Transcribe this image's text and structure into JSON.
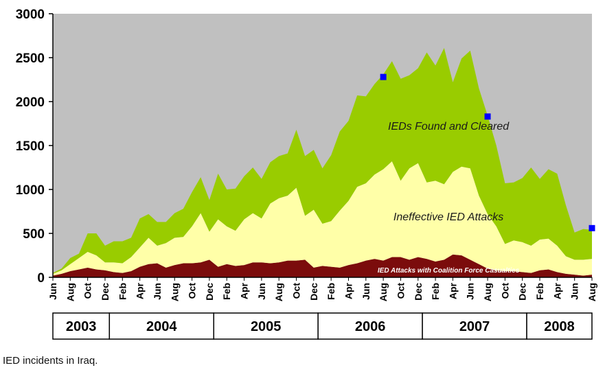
{
  "chart_data": {
    "type": "area",
    "stacked": true,
    "ylim": [
      0,
      3000
    ],
    "y_ticks": [
      0,
      500,
      1000,
      1500,
      2000,
      2500,
      3000
    ],
    "x": [
      "Jun 2003",
      "Jul",
      "Aug",
      "Sep",
      "Oct",
      "Nov",
      "Dec",
      "Jan 2004",
      "Feb",
      "Mar",
      "Apr",
      "May",
      "Jun",
      "Jul",
      "Aug",
      "Sep",
      "Oct",
      "Nov",
      "Dec",
      "Jan 2005",
      "Feb",
      "Mar",
      "Apr",
      "May",
      "Jun",
      "Jul",
      "Aug",
      "Sep",
      "Oct",
      "Nov",
      "Dec",
      "Jan 2006",
      "Feb",
      "Mar",
      "Apr",
      "May",
      "Jun",
      "Jul",
      "Aug",
      "Sep",
      "Oct",
      "Nov",
      "Dec",
      "Jan 2007",
      "Feb",
      "Mar",
      "Apr",
      "May",
      "Jun",
      "Jul",
      "Aug",
      "Sep",
      "Oct",
      "Nov",
      "Dec",
      "Jan 2008",
      "Feb",
      "Mar",
      "Apr",
      "May",
      "Jun",
      "Jul",
      "Aug"
    ],
    "x_tick_labels": [
      "Jun",
      "Aug",
      "Oct",
      "Dec",
      "Feb",
      "Apr",
      "Jun",
      "Aug",
      "Oct",
      "Dec",
      "Feb",
      "Apr",
      "Jun",
      "Aug",
      "Oct",
      "Dec",
      "Feb",
      "Apr",
      "Jun",
      "Aug",
      "Oct",
      "Dec",
      "Feb",
      "Apr",
      "Jun",
      "Aug",
      "Oct",
      "Dec",
      "Feb",
      "Apr",
      "Jun",
      "Aug"
    ],
    "years": [
      {
        "label": "2003",
        "from": 0,
        "to": 7
      },
      {
        "label": "2004",
        "from": 7,
        "to": 19
      },
      {
        "label": "2005",
        "from": 19,
        "to": 31
      },
      {
        "label": "2006",
        "from": 31,
        "to": 43
      },
      {
        "label": "2007",
        "from": 43,
        "to": 55
      },
      {
        "label": "2008",
        "from": 55,
        "to": 62
      }
    ],
    "series": [
      {
        "name": "IED Attacks with Coalition Force Casualties",
        "color": "#7b0c0c",
        "values": [
          20,
          40,
          70,
          90,
          110,
          90,
          80,
          60,
          50,
          70,
          120,
          150,
          160,
          110,
          140,
          160,
          160,
          170,
          200,
          120,
          150,
          130,
          140,
          170,
          170,
          160,
          170,
          190,
          190,
          200,
          110,
          130,
          120,
          110,
          140,
          160,
          190,
          210,
          190,
          230,
          230,
          200,
          230,
          210,
          180,
          200,
          260,
          250,
          200,
          150,
          100,
          80,
          70,
          70,
          60,
          50,
          80,
          90,
          60,
          40,
          30,
          20,
          30
        ]
      },
      {
        "name": "Ineffective IED Attacks",
        "color": "#ffffa8",
        "values": [
          20,
          40,
          80,
          130,
          180,
          160,
          90,
          110,
          110,
          160,
          220,
          300,
          200,
          280,
          310,
          300,
          420,
          560,
          320,
          540,
          430,
          400,
          520,
          560,
          500,
          680,
          730,
          740,
          830,
          500,
          660,
          480,
          520,
          650,
          730,
          870,
          880,
          960,
          1040,
          1090,
          870,
          1040,
          1070,
          870,
          920,
          860,
          940,
          1010,
          1040,
          780,
          620,
          500,
          310,
          350,
          340,
          310,
          350,
          350,
          300,
          200,
          170,
          180,
          180
        ]
      },
      {
        "name": "IEDs Found and Cleared",
        "color": "#99cc00",
        "values": [
          10,
          20,
          70,
          50,
          210,
          250,
          190,
          240,
          250,
          220,
          330,
          270,
          270,
          240,
          280,
          320,
          390,
          410,
          360,
          520,
          420,
          480,
          490,
          520,
          450,
          470,
          480,
          480,
          660,
          680,
          680,
          630,
          750,
          900,
          910,
          1040,
          990,
          1030,
          1080,
          1140,
          1160,
          1060,
          1080,
          1480,
          1310,
          1550,
          1020,
          1230,
          1340,
          1220,
          1120,
          920,
          690,
          660,
          730,
          890,
          690,
          790,
          820,
          580,
          310,
          350,
          330
        ]
      }
    ],
    "markers": [
      {
        "label": "Aug 2006",
        "index": 38,
        "value": 2280
      },
      {
        "label": "Aug 2007",
        "index": 50,
        "value": 1830
      },
      {
        "label": "Aug 2008",
        "index": 62,
        "value": 560
      }
    ],
    "marker_color": "#0000ff",
    "annotations": [
      {
        "text": "IEDs Found and Cleared",
        "index": 45.5,
        "value": 1680
      },
      {
        "text": "Ineffective IED Attacks",
        "index": 45.5,
        "value": 650
      },
      {
        "text": "IED Attacks with Coalition Force Casualties",
        "index": 45.5,
        "value": 55
      }
    ],
    "plot_bg": "#c0c0c0"
  },
  "caption": "IED incidents in Iraq."
}
